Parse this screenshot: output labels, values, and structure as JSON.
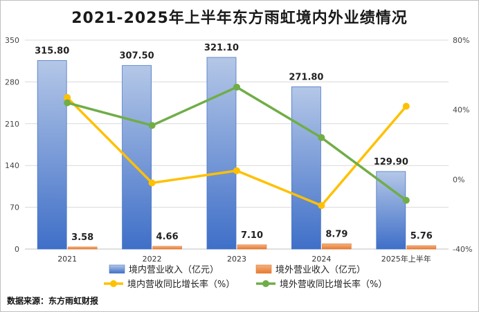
{
  "chart_data": {
    "type": "bar+line",
    "title": "2021-2025年上半年东方雨虹境内外业绩情况",
    "categories": [
      "2021",
      "2022",
      "2023",
      "2024",
      "2025年上半年"
    ],
    "y_left": {
      "range": [
        0,
        350
      ],
      "ticks": [
        "0",
        "70",
        "140",
        "210",
        "280",
        "350"
      ]
    },
    "y_right": {
      "range": [
        -40,
        80
      ],
      "ticks": [
        "-40%",
        "0%",
        "40%",
        "80%"
      ]
    },
    "series": [
      {
        "name": "境内营业收入（亿元）",
        "kind": "bar",
        "axis": "left",
        "values": [
          315.8,
          307.5,
          321.1,
          271.8,
          129.9
        ],
        "labels": [
          "315.80",
          "307.50",
          "321.10",
          "271.80",
          "129.90"
        ],
        "color": "#4472c4"
      },
      {
        "name": "境外营业收入（亿元）",
        "kind": "bar",
        "axis": "left",
        "values": [
          3.58,
          4.66,
          7.1,
          8.79,
          5.76
        ],
        "labels": [
          "3.58",
          "4.66",
          "7.10",
          "8.79",
          "5.76"
        ],
        "color": "#ed7d31"
      },
      {
        "name": "境内营收同比增长率（%）",
        "kind": "line",
        "axis": "right",
        "values": [
          47,
          -2,
          5,
          -15,
          42
        ],
        "color": "#ffc000"
      },
      {
        "name": "境外营收同比增长率（%）",
        "kind": "line",
        "axis": "right",
        "values": [
          44,
          31,
          53,
          24,
          -12
        ],
        "color": "#70ad47"
      }
    ]
  },
  "source": "数据来源：东方雨虹财报"
}
